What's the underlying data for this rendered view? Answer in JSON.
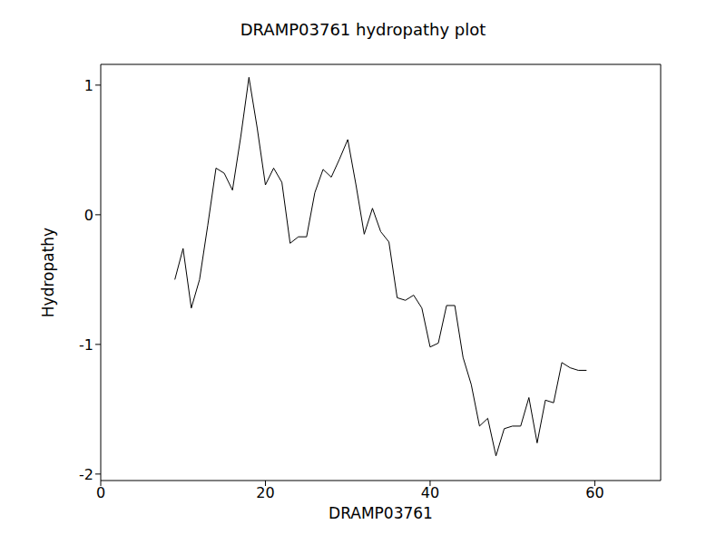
{
  "chart_data": {
    "type": "line",
    "title": "DRAMP03761 hydropathy plot",
    "x_label": "DRAMP03761",
    "y_label": "Hydropathy",
    "color": "#000000",
    "x": [
      9,
      10,
      11,
      12,
      13,
      14,
      15,
      16,
      17,
      18,
      19,
      20,
      21,
      22,
      23,
      24,
      25,
      26,
      27,
      28,
      29,
      30,
      31,
      32,
      33,
      34,
      35,
      36,
      37,
      38,
      39,
      40,
      41,
      42,
      43,
      44,
      45,
      46,
      47,
      48,
      49,
      50,
      51,
      52,
      53,
      54,
      55,
      56,
      57,
      58,
      59
    ],
    "values": [
      -0.5,
      -0.26,
      -0.72,
      -0.5,
      -0.08,
      0.36,
      0.32,
      0.19,
      0.6,
      1.06,
      0.67,
      0.23,
      0.36,
      0.25,
      -0.22,
      -0.17,
      -0.17,
      0.17,
      0.35,
      0.29,
      0.43,
      0.58,
      0.23,
      -0.15,
      0.05,
      -0.13,
      -0.21,
      -0.64,
      -0.66,
      -0.62,
      -0.72,
      -1.02,
      -0.99,
      -0.7,
      -0.7,
      -1.1,
      -1.31,
      -1.63,
      -1.57,
      -1.86,
      -1.65,
      -1.63,
      -1.63,
      -1.41,
      -1.76,
      -1.43,
      -1.45,
      -1.14,
      -1.18,
      -1.2,
      -1.2
    ],
    "xlim": [
      0,
      68
    ],
    "ylim": [
      -2.05,
      1.16
    ],
    "xticks": [
      0,
      20,
      40,
      60
    ],
    "yticks": [
      -2,
      -1,
      0,
      1
    ]
  }
}
